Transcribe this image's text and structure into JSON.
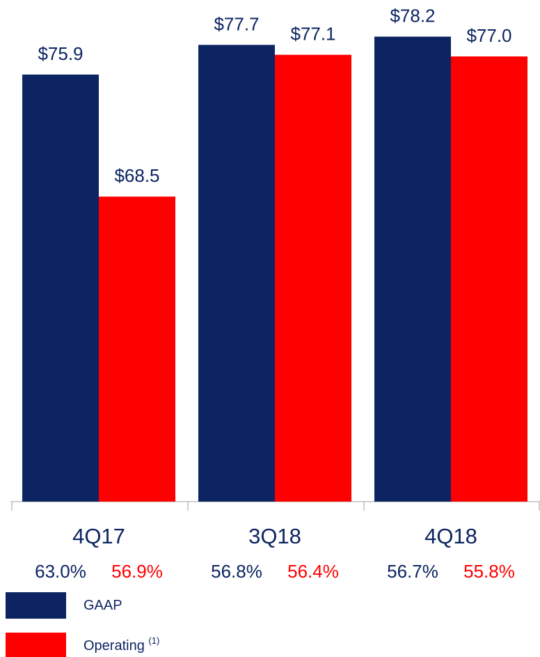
{
  "chart_data": {
    "type": "bar",
    "categories": [
      "4Q17",
      "3Q18",
      "4Q18"
    ],
    "series": [
      {
        "name": "GAAP",
        "color": "#0c2461",
        "values": [
          75.9,
          77.7,
          78.2
        ],
        "value_labels": [
          "$75.9",
          "$77.7",
          "$78.2"
        ],
        "ratios": [
          63.0,
          56.8,
          56.7
        ],
        "ratio_labels": [
          "63.0%",
          "56.8%",
          "56.7%"
        ]
      },
      {
        "name": "Operating",
        "color": "#ff0000",
        "values": [
          68.5,
          77.1,
          77.0
        ],
        "value_labels": [
          "$68.5",
          "$77.1",
          "$77.0"
        ],
        "ratios": [
          56.9,
          56.4,
          55.8
        ],
        "ratio_labels": [
          "56.9%",
          "56.4%",
          "55.8%"
        ],
        "legend_note": "(1)"
      }
    ],
    "ylim": [
      50,
      80
    ],
    "legend": "bottom-left"
  }
}
